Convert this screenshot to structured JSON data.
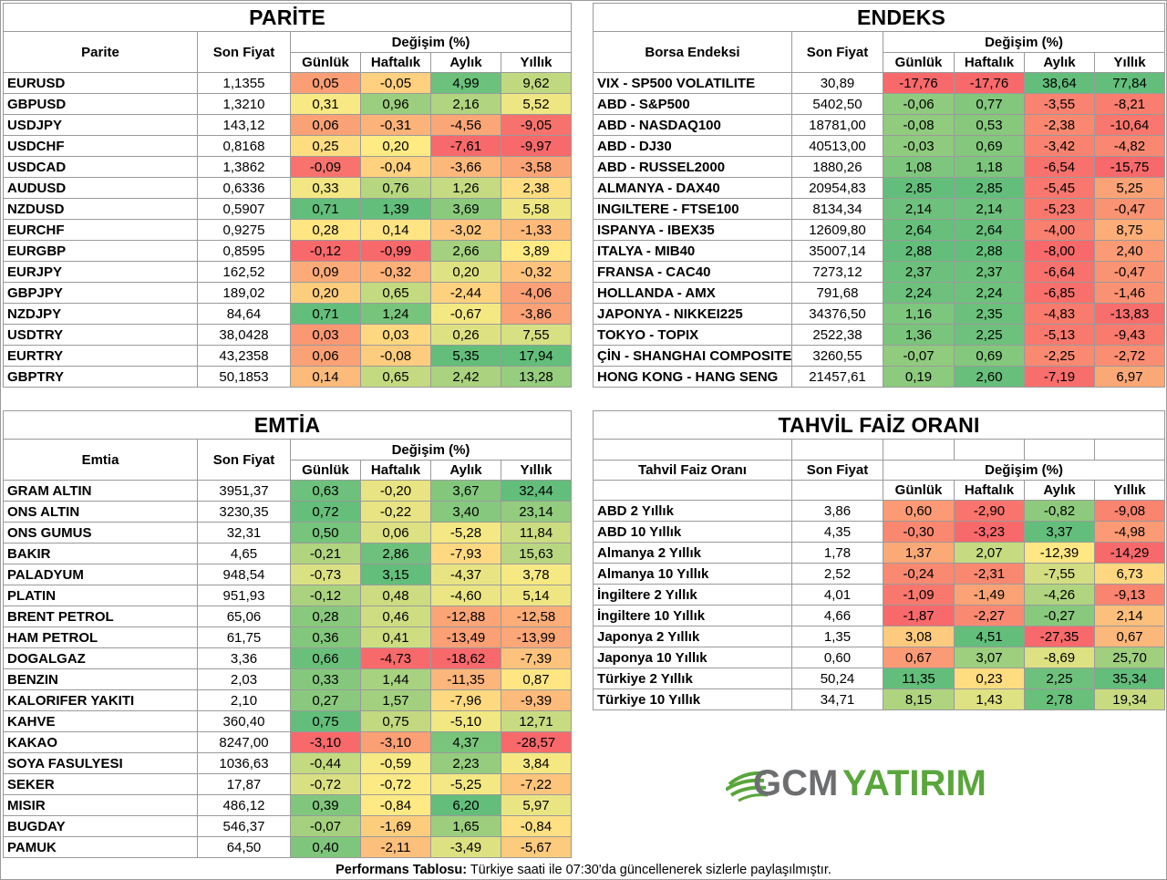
{
  "parite": {
    "title": "PARİTE",
    "col_name": "Parite",
    "col_price": "Son Fiyat",
    "col_change": "Değişim (%)",
    "sub": [
      "Günlük",
      "Haftalık",
      "Aylık",
      "Yıllık"
    ],
    "rows": [
      [
        "EURUSD",
        "1,1355",
        "0,05",
        "-0,05",
        "4,99",
        "9,62"
      ],
      [
        "GBPUSD",
        "1,3210",
        "0,31",
        "0,96",
        "2,16",
        "5,52"
      ],
      [
        "USDJPY",
        "143,12",
        "0,06",
        "-0,31",
        "-4,56",
        "-9,05"
      ],
      [
        "USDCHF",
        "0,8168",
        "0,25",
        "0,20",
        "-7,61",
        "-9,97"
      ],
      [
        "USDCAD",
        "1,3862",
        "-0,09",
        "-0,04",
        "-3,66",
        "-3,58"
      ],
      [
        "AUDUSD",
        "0,6336",
        "0,33",
        "0,76",
        "1,26",
        "2,38"
      ],
      [
        "NZDUSD",
        "0,5907",
        "0,71",
        "1,39",
        "3,69",
        "5,58"
      ],
      [
        "EURCHF",
        "0,9275",
        "0,28",
        "0,14",
        "-3,02",
        "-1,33"
      ],
      [
        "EURGBP",
        "0,8595",
        "-0,12",
        "-0,99",
        "2,66",
        "3,89"
      ],
      [
        "EURJPY",
        "162,52",
        "0,09",
        "-0,32",
        "0,20",
        "-0,32"
      ],
      [
        "GBPJPY",
        "189,02",
        "0,20",
        "0,65",
        "-2,44",
        "-4,06"
      ],
      [
        "NZDJPY",
        "84,64",
        "0,71",
        "1,24",
        "-0,67",
        "-3,86"
      ],
      [
        "USDTRY",
        "38,0428",
        "0,03",
        "0,03",
        "0,26",
        "7,55"
      ],
      [
        "EURTRY",
        "43,2358",
        "0,06",
        "-0,08",
        "5,35",
        "17,94"
      ],
      [
        "GBPTRY",
        "50,1853",
        "0,14",
        "0,65",
        "2,42",
        "13,28"
      ]
    ]
  },
  "endeks": {
    "title": "ENDEKS",
    "col_name": "Borsa Endeksi",
    "col_price": "Son Fiyat",
    "col_change": "Değişim (%)",
    "sub": [
      "Günlük",
      "Haftalık",
      "Aylık",
      "Yıllık"
    ],
    "rows": [
      [
        "VIX  - SP500 VOLATILITE",
        "30,89",
        "-17,76",
        "-17,76",
        "38,64",
        "77,84"
      ],
      [
        "ABD - S&P500",
        "5402,50",
        "-0,06",
        "0,77",
        "-3,55",
        "-8,21"
      ],
      [
        "ABD - NASDAQ100",
        "18781,00",
        "-0,08",
        "0,53",
        "-2,38",
        "-10,64"
      ],
      [
        "ABD - DJ30",
        "40513,00",
        "-0,03",
        "0,69",
        "-3,42",
        "-4,82"
      ],
      [
        "ABD - RUSSEL2000",
        "1880,26",
        "1,08",
        "1,18",
        "-6,54",
        "-15,75"
      ],
      [
        "ALMANYA - DAX40",
        "20954,83",
        "2,85",
        "2,85",
        "-5,45",
        "5,25"
      ],
      [
        "INGILTERE - FTSE100",
        "8134,34",
        "2,14",
        "2,14",
        "-5,23",
        "-0,47"
      ],
      [
        "ISPANYA - IBEX35",
        "12609,80",
        "2,64",
        "2,64",
        "-4,00",
        "8,75"
      ],
      [
        "ITALYA - MIB40",
        "35007,14",
        "2,88",
        "2,88",
        "-8,00",
        "2,40"
      ],
      [
        "FRANSA - CAC40",
        "7273,12",
        "2,37",
        "2,37",
        "-6,64",
        "-0,47"
      ],
      [
        "HOLLANDA - AMX",
        "791,68",
        "2,24",
        "2,24",
        "-6,85",
        "-1,46"
      ],
      [
        "JAPONYA - NIKKEI225",
        "34376,50",
        "1,16",
        "2,35",
        "-4,83",
        "-13,83"
      ],
      [
        "TOKYO - TOPIX",
        "2522,38",
        "1,36",
        "2,25",
        "-5,13",
        "-9,43"
      ],
      [
        "ÇİN - SHANGHAI COMPOSITE",
        "3260,55",
        "-0,07",
        "0,69",
        "-2,25",
        "-2,72"
      ],
      [
        "HONG KONG - HANG SENG",
        "21457,61",
        "0,19",
        "2,60",
        "-7,19",
        "6,97"
      ]
    ]
  },
  "emtia": {
    "title": "EMTİA",
    "col_name": "Emtia",
    "col_price": "Son Fiyat",
    "col_change": "Değişim (%)",
    "sub": [
      "Günlük",
      "Haftalık",
      "Aylık",
      "Yıllık"
    ],
    "rows": [
      [
        "GRAM ALTIN",
        "3951,37",
        "0,63",
        "-0,20",
        "3,67",
        "32,44"
      ],
      [
        "ONS ALTIN",
        "3230,35",
        "0,72",
        "-0,22",
        "3,40",
        "23,14"
      ],
      [
        "ONS GUMUS",
        "32,31",
        "0,50",
        "0,06",
        "-5,28",
        "11,84"
      ],
      [
        "BAKIR",
        "4,65",
        "-0,21",
        "2,86",
        "-7,93",
        "15,63"
      ],
      [
        "PALADYUM",
        "948,54",
        "-0,73",
        "3,15",
        "-4,37",
        "3,78"
      ],
      [
        "PLATIN",
        "951,93",
        "-0,12",
        "0,48",
        "-4,60",
        "5,14"
      ],
      [
        "BRENT PETROL",
        "65,06",
        "0,28",
        "0,46",
        "-12,88",
        "-12,58"
      ],
      [
        "HAM PETROL",
        "61,75",
        "0,36",
        "0,41",
        "-13,49",
        "-13,99"
      ],
      [
        "DOGALGAZ",
        "3,36",
        "0,66",
        "-4,73",
        "-18,62",
        "-7,39"
      ],
      [
        "BENZIN",
        "2,03",
        "0,33",
        "1,44",
        "-11,35",
        "0,87"
      ],
      [
        "KALORIFER YAKITI",
        "2,10",
        "0,27",
        "1,57",
        "-7,96",
        "-9,39"
      ],
      [
        "KAHVE",
        "360,40",
        "0,75",
        "0,75",
        "-5,10",
        "12,71"
      ],
      [
        "KAKAO",
        "8247,00",
        "-3,10",
        "-3,10",
        "4,37",
        "-28,57"
      ],
      [
        "SOYA FASULYESI",
        "1036,63",
        "-0,44",
        "-0,59",
        "2,23",
        "3,84"
      ],
      [
        "SEKER",
        "17,87",
        "-0,72",
        "-0,72",
        "-5,25",
        "-7,22"
      ],
      [
        "MISIR",
        "486,12",
        "0,39",
        "-0,84",
        "6,20",
        "5,97"
      ],
      [
        "BUGDAY",
        "546,37",
        "-0,07",
        "-1,69",
        "1,65",
        "-0,84"
      ],
      [
        "PAMUK",
        "64,50",
        "0,40",
        "-2,11",
        "-3,49",
        "-5,67"
      ]
    ]
  },
  "tahvil": {
    "title": "TAHVİL FAİZ ORANI",
    "col_name": "Tahvil Faiz Oranı",
    "col_price": "Son Fiyat",
    "col_change": "Değişim (%)",
    "sub": [
      "Günlük",
      "Haftalık",
      "Aylık",
      "Yıllık"
    ],
    "rows": [
      [
        "ABD 2 Yıllık",
        "3,86",
        "0,60",
        "-2,90",
        "-0,82",
        "-9,08"
      ],
      [
        "ABD 10 Yıllık",
        "4,35",
        "-0,30",
        "-3,23",
        "3,37",
        "-4,98"
      ],
      [
        "Almanya 2 Yıllık",
        "1,78",
        "1,37",
        "2,07",
        "-12,39",
        "-14,29"
      ],
      [
        "Almanya 10 Yıllık",
        "2,52",
        "-0,24",
        "-2,31",
        "-7,55",
        "6,73"
      ],
      [
        "İngiltere 2 Yıllık",
        "4,01",
        "-1,09",
        "-1,49",
        "-4,26",
        "-9,13"
      ],
      [
        "İngiltere 10 Yıllık",
        "4,66",
        "-1,87",
        "-2,27",
        "-0,27",
        "2,14"
      ],
      [
        "Japonya 2 Yıllık",
        "1,35",
        "3,08",
        "4,51",
        "-27,35",
        "0,67"
      ],
      [
        "Japonya 10 Yıllık",
        "0,60",
        "0,67",
        "3,07",
        "-8,69",
        "25,70"
      ],
      [
        "Türkiye 2 Yıllık",
        "50,24",
        "11,35",
        "0,23",
        "2,25",
        "35,34"
      ],
      [
        "Türkiye 10 Yıllık",
        "34,71",
        "8,15",
        "1,43",
        "2,78",
        "19,34"
      ]
    ]
  },
  "footer": {
    "bold": "Performans Tablosu:",
    "text": " Türkiye saati ile 07:30'da güncellenerek sizlerle paylaşılmıştır."
  },
  "logo": {
    "text_gcm": "GCM",
    "text_yatirim": "YATIRIM",
    "color_gray": "#6d6e70",
    "color_green": "#5aa63c"
  },
  "colors": {
    "red": "#f8696b",
    "yellow": "#ffeb84",
    "green": "#63be7b"
  }
}
